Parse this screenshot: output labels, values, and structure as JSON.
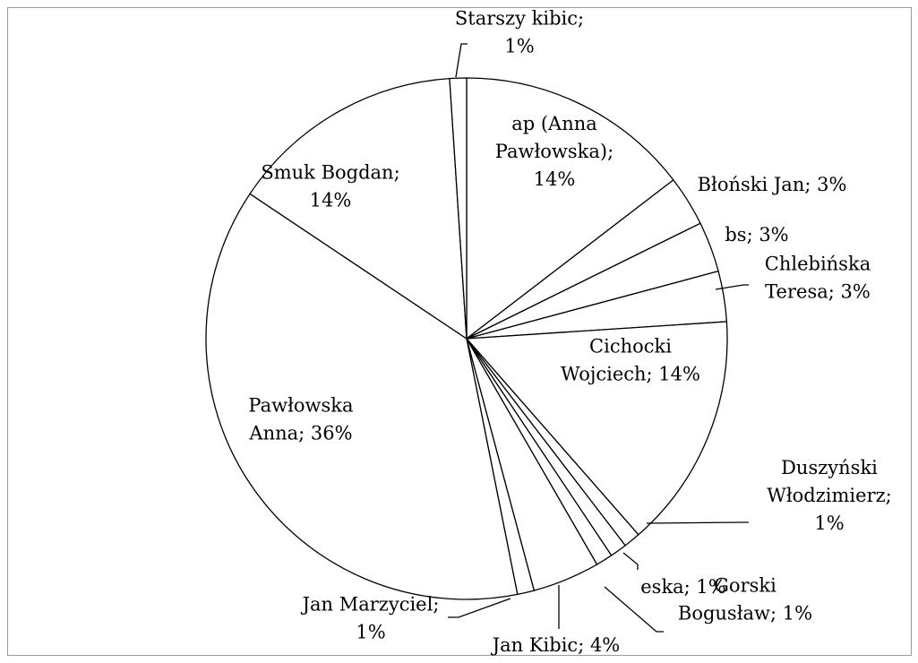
{
  "chart_data": {
    "type": "pie",
    "title": "",
    "legend": "none",
    "slices": [
      {
        "name": "ap (Anna Pawłowska)",
        "value": 14,
        "label_lines": [
          "ap (Anna",
          "Pawłowska);",
          "14%"
        ]
      },
      {
        "name": "Błoński Jan",
        "value": 3,
        "label_lines": [
          "Błoński Jan; 3%"
        ]
      },
      {
        "name": "bs",
        "value": 3,
        "label_lines": [
          "bs; 3%"
        ]
      },
      {
        "name": "Chlebińska Teresa",
        "value": 3,
        "label_lines": [
          "Chlebińska",
          "Teresa; 3%"
        ]
      },
      {
        "name": "Cichocki Wojciech",
        "value": 14,
        "label_lines": [
          "Cichocki",
          "Wojciech; 14%"
        ]
      },
      {
        "name": "Duszyński Włodzimierz",
        "value": 1,
        "label_lines": [
          "Duszyński",
          "Włodzimierz;",
          "1%"
        ]
      },
      {
        "name": "eska",
        "value": 1,
        "label_lines": [
          "eska; 1%"
        ]
      },
      {
        "name": "Gorski Bogusław",
        "value": 1,
        "label_lines": [
          "Gorski",
          "Bogusław; 1%"
        ]
      },
      {
        "name": "Jan Kibic",
        "value": 4,
        "label_lines": [
          "Jan Kibic; 4%"
        ]
      },
      {
        "name": "Jan Marzyciel",
        "value": 1,
        "label_lines": [
          "Jan Marzyciel;",
          "1%"
        ]
      },
      {
        "name": "Pawłowska Anna",
        "value": 36,
        "label_lines": [
          "Pawłowska",
          "Anna; 36%"
        ]
      },
      {
        "name": "Smuk Bogdan",
        "value": 14,
        "label_lines": [
          "Smuk Bogdan;",
          "14%"
        ]
      },
      {
        "name": "Starszy kibic",
        "value": 1,
        "label_lines": [
          "Starszy kibic;",
          "1%"
        ]
      }
    ]
  }
}
